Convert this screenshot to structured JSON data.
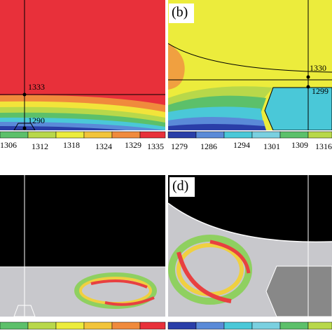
{
  "panel_a": {
    "annotations": [
      "1333",
      "1290"
    ],
    "colorbar_ticks": [
      "1306",
      "1312",
      "1318",
      "1324",
      "1329",
      "1335"
    ]
  },
  "panel_b": {
    "label": "(b)",
    "annotations": [
      "1330",
      "1299"
    ],
    "colorbar_ticks": [
      "1279",
      "1286",
      "1294",
      "1301",
      "1309",
      "1316"
    ]
  },
  "panel_d": {
    "label": "(d)"
  }
}
